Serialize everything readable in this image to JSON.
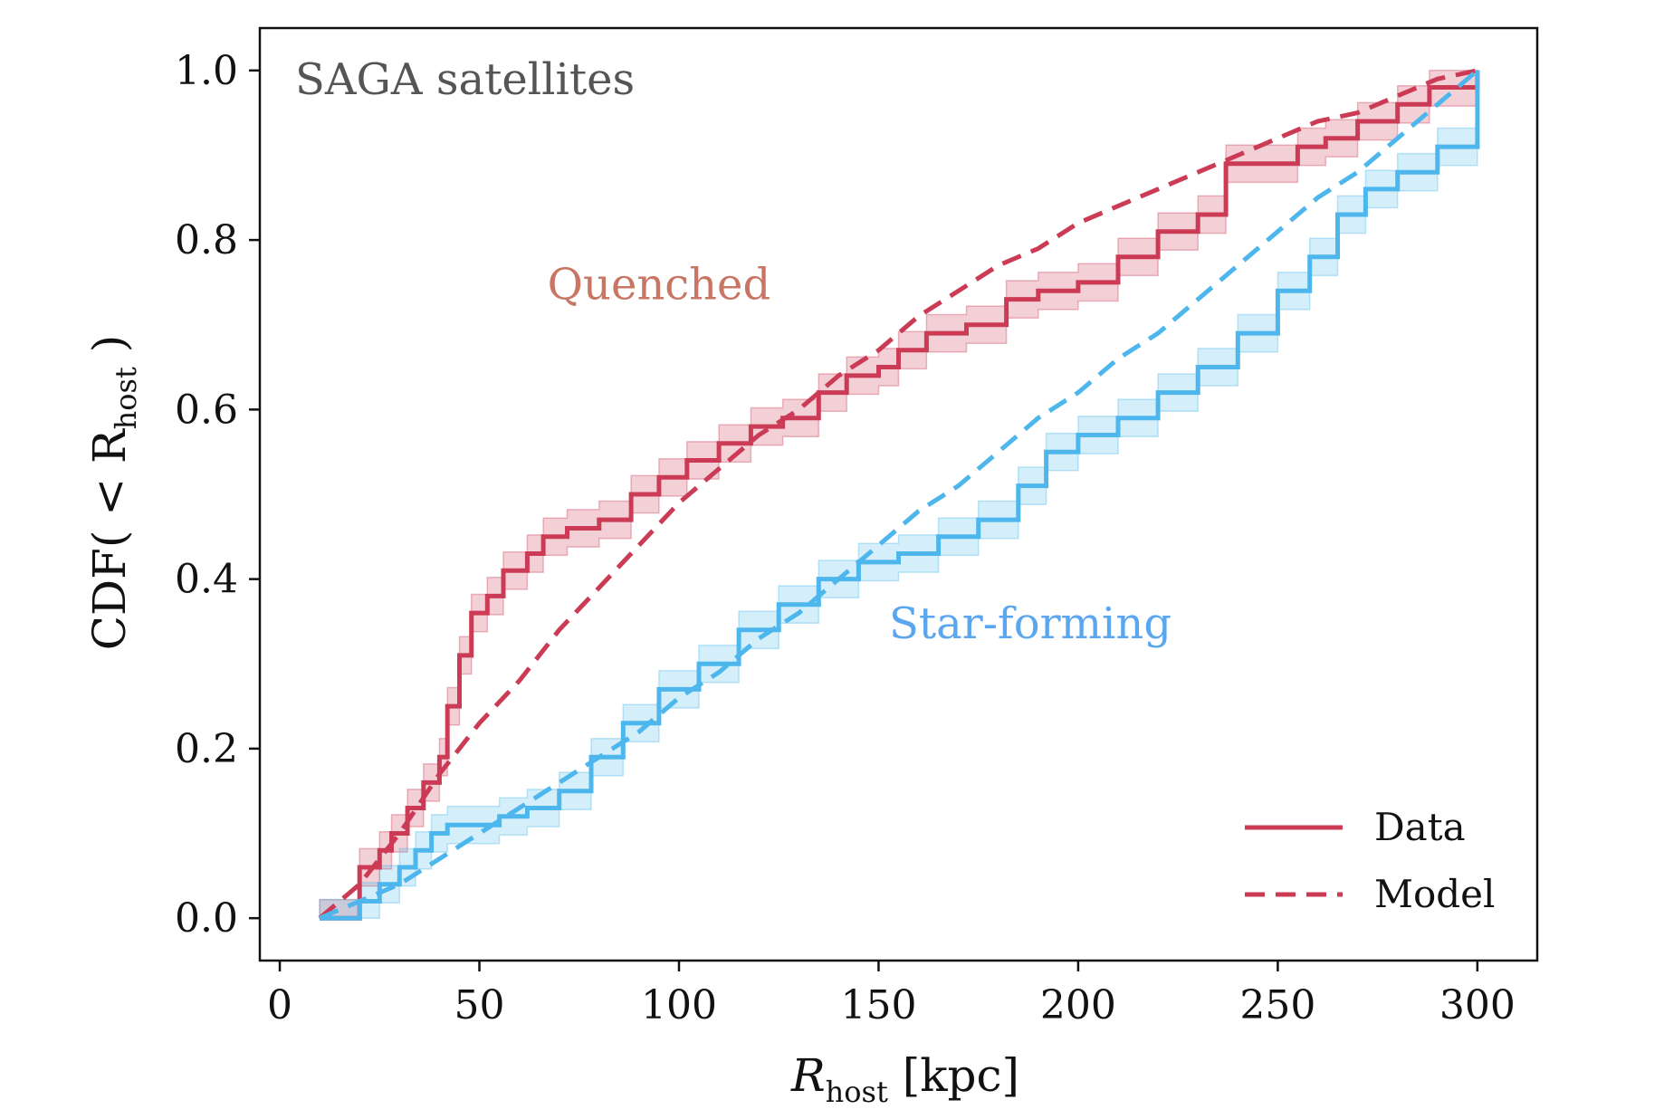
{
  "chart_data": {
    "type": "line",
    "title": "SAGA satellites",
    "xlabel": {
      "main": "R",
      "sub": "host",
      "unit": " [kpc]"
    },
    "ylabel": {
      "prefix": "CDF( < R",
      "sub": "host",
      "suffix": " )"
    },
    "xlim": [
      -5,
      315
    ],
    "ylim": [
      -0.05,
      1.05
    ],
    "xticks": [
      0,
      50,
      100,
      150,
      200,
      250,
      300
    ],
    "yticks": [
      0.0,
      0.2,
      0.4,
      0.6,
      0.8,
      1.0
    ],
    "grid": false,
    "legend_position": "bottom-right",
    "colors": {
      "quenched": "#cc3b55",
      "star_forming": "#4db6ec",
      "quenched_label": "#c97564",
      "star_forming_label": "#5aa6ef"
    },
    "annotations": [
      {
        "text": "Quenched",
        "x": 95,
        "y": 0.73,
        "color_key": "quenched_label"
      },
      {
        "text": "Star-forming",
        "x": 188,
        "y": 0.33,
        "color_key": "star_forming_label"
      }
    ],
    "legend": [
      {
        "label": "Data",
        "style": "solid"
      },
      {
        "label": "Model",
        "style": "dashed"
      }
    ],
    "series": [
      {
        "group": "quenched",
        "kind": "data",
        "x": [
          10,
          15,
          17,
          20,
          22,
          25,
          28,
          32,
          36,
          40,
          42,
          45,
          48,
          52,
          56,
          62,
          66,
          72,
          80,
          88,
          95,
          102,
          110,
          118,
          126,
          135,
          142,
          150,
          155,
          162,
          172,
          182,
          190,
          200,
          210,
          220,
          230,
          237,
          245,
          255,
          262,
          270,
          280,
          288,
          300
        ],
        "y": [
          0.0,
          0.0,
          0.0,
          0.06,
          0.06,
          0.08,
          0.1,
          0.13,
          0.16,
          0.19,
          0.25,
          0.31,
          0.36,
          0.38,
          0.41,
          0.43,
          0.45,
          0.46,
          0.47,
          0.5,
          0.52,
          0.54,
          0.56,
          0.58,
          0.59,
          0.62,
          0.64,
          0.65,
          0.67,
          0.69,
          0.7,
          0.73,
          0.74,
          0.75,
          0.78,
          0.81,
          0.83,
          0.89,
          0.89,
          0.91,
          0.92,
          0.94,
          0.96,
          0.98,
          1.0
        ],
        "band_half_width": 0.022
      },
      {
        "group": "quenched",
        "kind": "model",
        "x": [
          10,
          20,
          30,
          40,
          50,
          60,
          70,
          80,
          90,
          100,
          110,
          120,
          130,
          140,
          150,
          160,
          170,
          180,
          190,
          200,
          210,
          220,
          230,
          240,
          250,
          260,
          270,
          280,
          290,
          300
        ],
        "y": [
          0.0,
          0.04,
          0.1,
          0.17,
          0.23,
          0.28,
          0.34,
          0.39,
          0.44,
          0.49,
          0.53,
          0.57,
          0.6,
          0.64,
          0.67,
          0.71,
          0.74,
          0.77,
          0.79,
          0.82,
          0.84,
          0.86,
          0.88,
          0.9,
          0.92,
          0.94,
          0.95,
          0.97,
          0.99,
          1.0
        ]
      },
      {
        "group": "star_forming",
        "kind": "data",
        "x": [
          10,
          15,
          20,
          25,
          30,
          34,
          38,
          42,
          48,
          55,
          62,
          70,
          78,
          86,
          95,
          105,
          115,
          125,
          135,
          145,
          155,
          165,
          175,
          185,
          192,
          200,
          210,
          220,
          230,
          240,
          250,
          258,
          265,
          272,
          280,
          290,
          300
        ],
        "y": [
          0.0,
          0.0,
          0.02,
          0.04,
          0.06,
          0.08,
          0.1,
          0.11,
          0.11,
          0.12,
          0.13,
          0.15,
          0.19,
          0.23,
          0.27,
          0.3,
          0.34,
          0.37,
          0.4,
          0.42,
          0.43,
          0.45,
          0.47,
          0.51,
          0.55,
          0.57,
          0.59,
          0.62,
          0.65,
          0.69,
          0.74,
          0.78,
          0.83,
          0.86,
          0.88,
          0.91,
          1.0
        ],
        "band_half_width": 0.022
      },
      {
        "group": "star_forming",
        "kind": "model",
        "x": [
          10,
          20,
          30,
          40,
          50,
          60,
          70,
          80,
          90,
          100,
          110,
          120,
          130,
          140,
          150,
          160,
          170,
          180,
          190,
          200,
          210,
          220,
          230,
          240,
          250,
          260,
          270,
          280,
          290,
          300
        ],
        "y": [
          0.0,
          0.02,
          0.04,
          0.07,
          0.1,
          0.13,
          0.16,
          0.19,
          0.22,
          0.26,
          0.29,
          0.33,
          0.36,
          0.4,
          0.44,
          0.48,
          0.51,
          0.55,
          0.59,
          0.62,
          0.66,
          0.69,
          0.73,
          0.77,
          0.81,
          0.85,
          0.88,
          0.92,
          0.96,
          1.0
        ]
      }
    ]
  }
}
